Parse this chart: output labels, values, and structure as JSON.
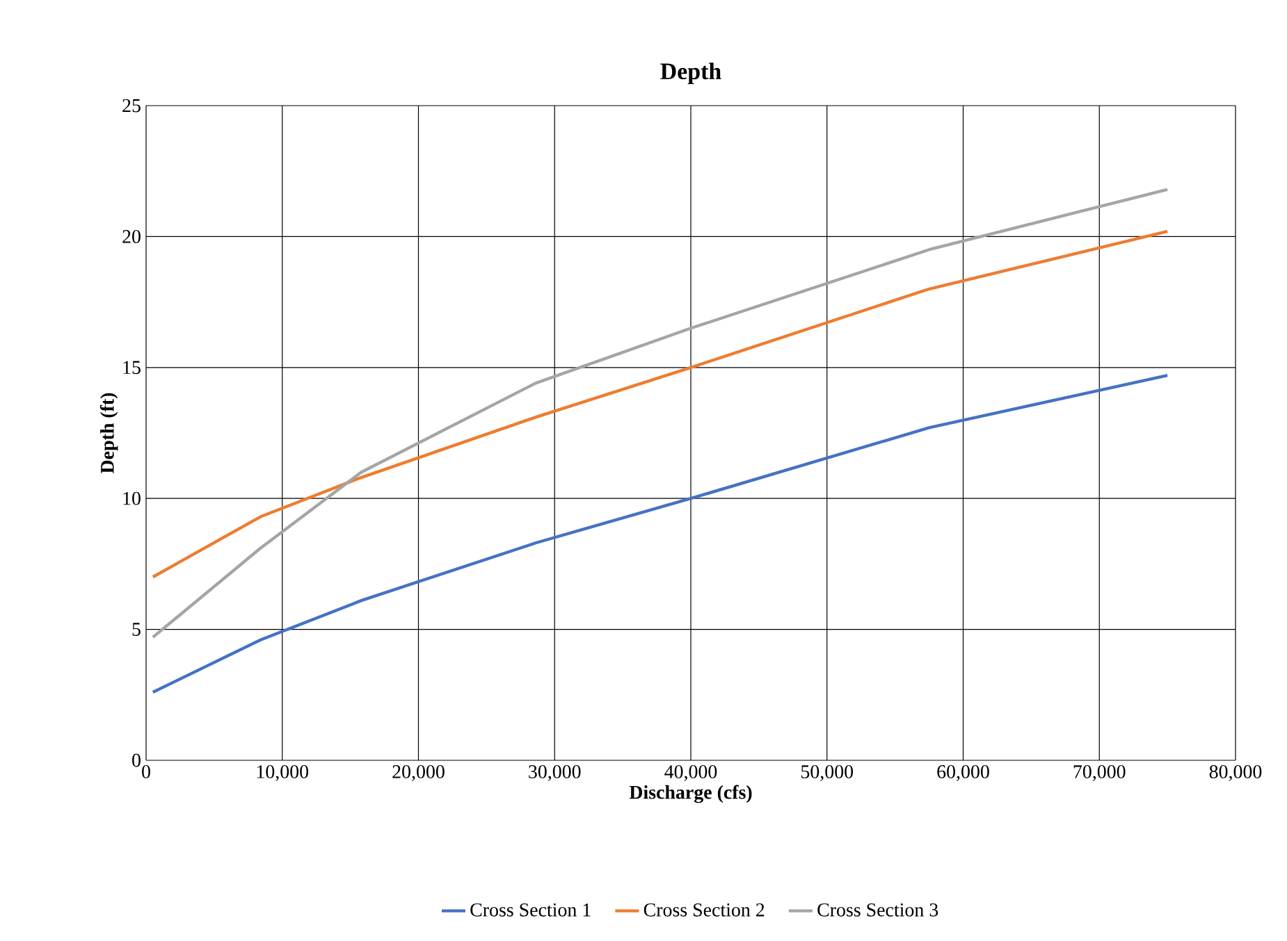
{
  "chart_data": {
    "type": "line",
    "title": "Depth",
    "xlabel": "Discharge (cfs)",
    "ylabel": "Depth (ft)",
    "x": [
      500,
      8400,
      15800,
      28600,
      40000,
      57500,
      75000
    ],
    "series": [
      {
        "name": "Cross Section 1",
        "color": "#4472c4",
        "values": [
          2.6,
          4.6,
          6.1,
          8.3,
          10.0,
          12.7,
          14.7
        ]
      },
      {
        "name": "Cross Section 2",
        "color": "#ed7d31",
        "values": [
          7.0,
          9.3,
          10.8,
          13.1,
          15.0,
          18.0,
          20.2
        ]
      },
      {
        "name": "Cross Section 3",
        "color": "#a5a5a5",
        "values": [
          4.7,
          8.1,
          11.0,
          14.4,
          16.5,
          19.5,
          21.8
        ]
      }
    ],
    "xlim": [
      0,
      80000
    ],
    "ylim": [
      0,
      25
    ],
    "xticks": [
      0,
      {
        "value": 10000,
        "label": "10,000"
      },
      {
        "value": 20000,
        "label": "20,000"
      },
      {
        "value": 30000,
        "label": "30,000"
      },
      {
        "value": 40000,
        "label": "40,000"
      },
      {
        "value": 50000,
        "label": "50,000"
      },
      {
        "value": 60000,
        "label": "60,000"
      },
      {
        "value": 70000,
        "label": "70,000"
      },
      {
        "value": 80000,
        "label": "80,000"
      }
    ],
    "yticks": [
      0,
      5,
      10,
      15,
      20,
      25
    ],
    "grid": true,
    "legend": "bottom",
    "marker": "none",
    "line_style": "solid"
  }
}
